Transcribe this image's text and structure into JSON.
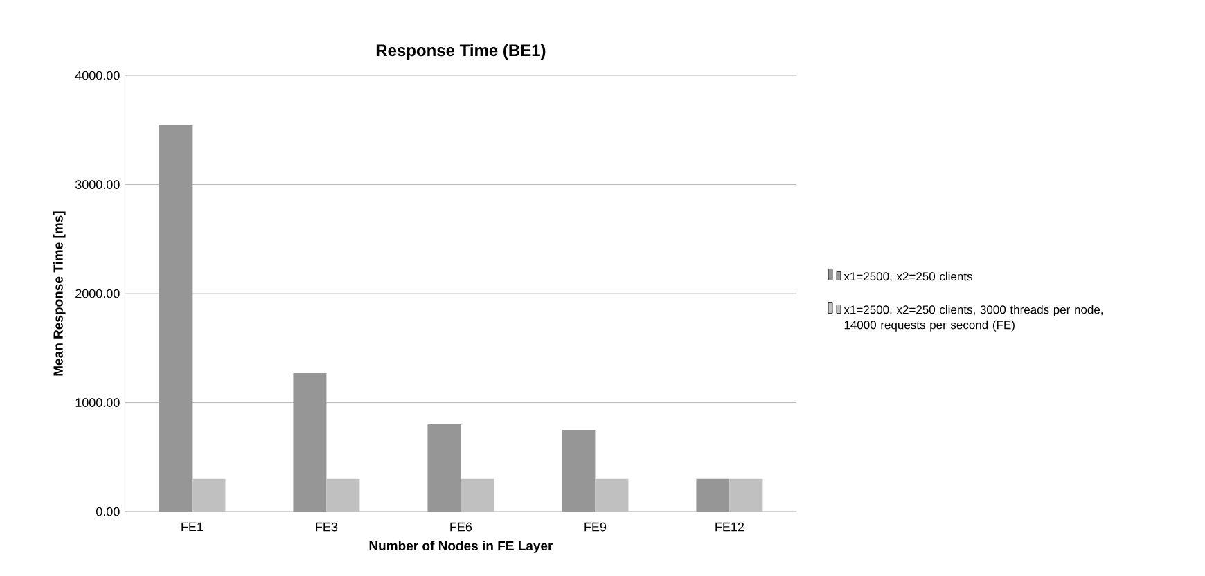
{
  "chart_data": {
    "type": "bar",
    "title": "Response Time (BE1)",
    "xlabel": "Number of Nodes in FE Layer",
    "ylabel": "Mean Response Time [ms]",
    "categories": [
      "FE1",
      "FE3",
      "FE6",
      "FE9",
      "FE12"
    ],
    "series": [
      {
        "name": "x1=2500, x2=250 clients",
        "color": "#969696",
        "values": [
          3550,
          1270,
          800,
          750,
          300
        ]
      },
      {
        "name": "x1=2500, x2=250 clients, 3000 threads per node, 14000 requests per second (FE)",
        "color": "#c0c0c0",
        "values": [
          300,
          300,
          300,
          300,
          300
        ]
      }
    ],
    "ylim": [
      0,
      4000
    ],
    "yticks": [
      {
        "value": 0,
        "label": "0.00"
      },
      {
        "value": 1000,
        "label": "1000.00"
      },
      {
        "value": 2000,
        "label": "2000.00"
      },
      {
        "value": 3000,
        "label": "3000.00"
      },
      {
        "value": 4000,
        "label": "4000.00"
      }
    ],
    "grid": "y",
    "legend": "right"
  }
}
